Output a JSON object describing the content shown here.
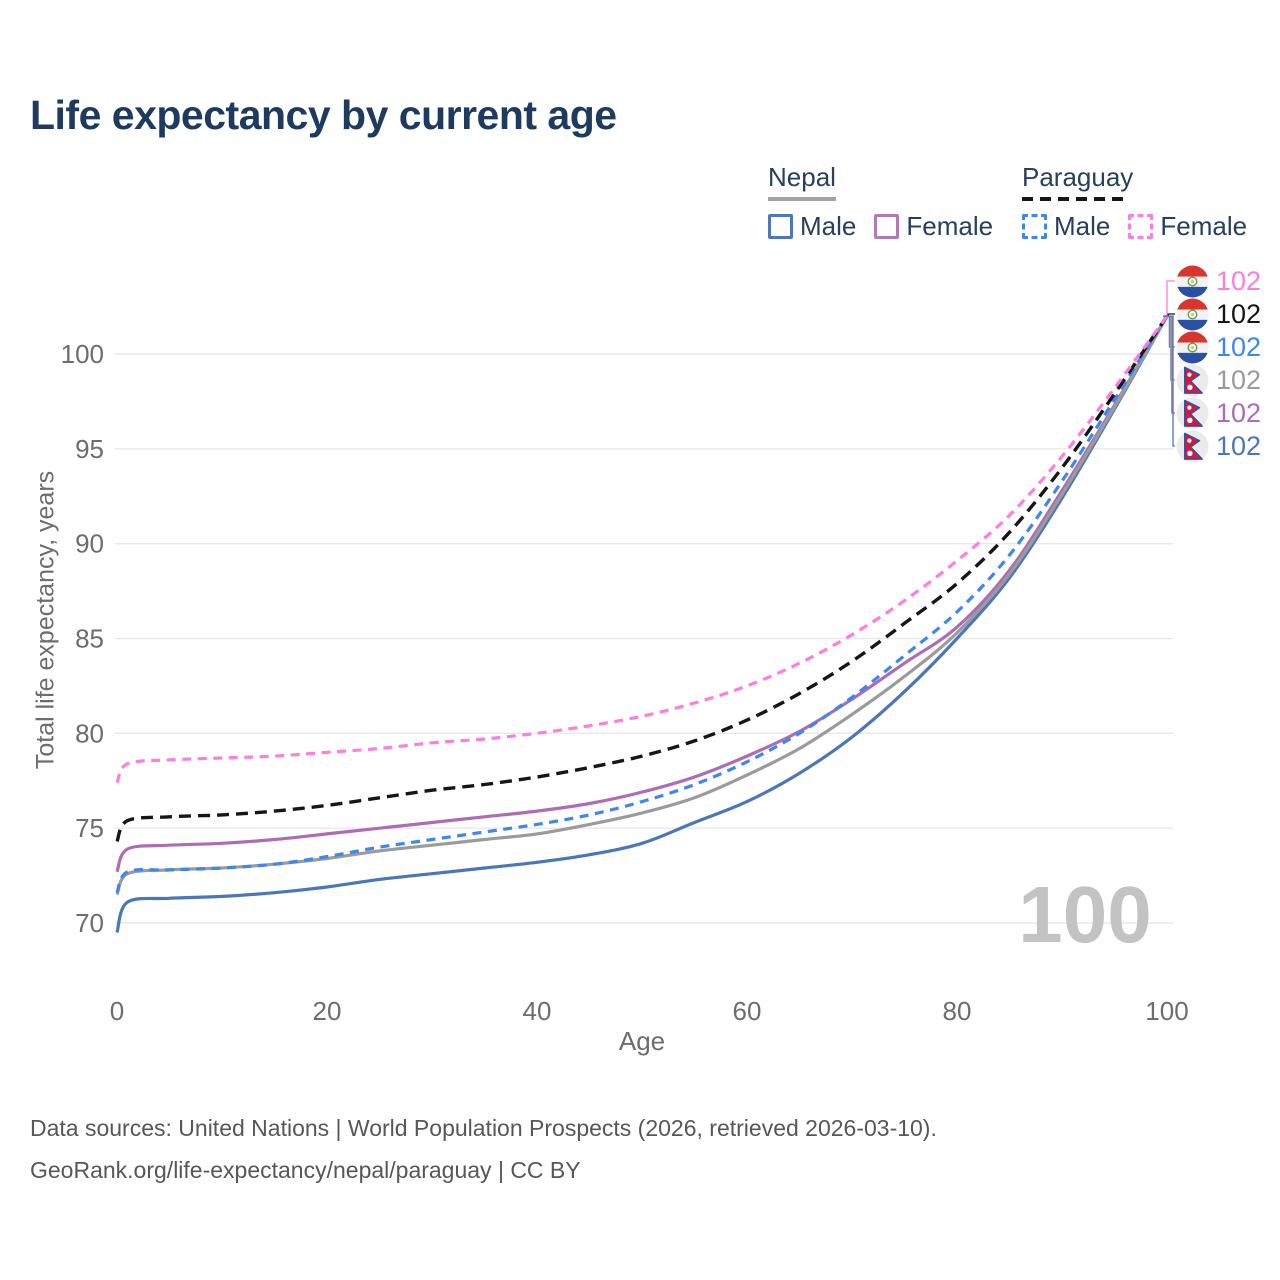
{
  "watermark": "100",
  "legend": {
    "groups": [
      {
        "country": "Nepal",
        "line_style": "solid",
        "underline_color": "#a3a3a3",
        "items": [
          {
            "label": "Male",
            "color": "#4a76ba"
          },
          {
            "label": "Female",
            "color": "#ad6cb5"
          }
        ]
      },
      {
        "country": "Paraguay",
        "line_style": "dashed",
        "underline_color": "#161616",
        "items": [
          {
            "label": "Male",
            "color": "#3d87f0"
          },
          {
            "label": "Female",
            "color": "#ff7de0"
          }
        ]
      }
    ]
  },
  "chart_data": {
    "type": "line",
    "title": "Life expectancy by current age",
    "xlabel": "Age",
    "ylabel": "Total life expectancy, years",
    "xlim": [
      0,
      100
    ],
    "ylim": [
      69,
      103
    ],
    "x_ticks": [
      0,
      20,
      40,
      60,
      80,
      100
    ],
    "y_ticks": [
      70,
      75,
      80,
      85,
      90,
      95,
      100
    ],
    "grid": "horizontal",
    "legend_position": "top-right",
    "x": [
      0,
      1,
      5,
      10,
      15,
      20,
      25,
      30,
      35,
      40,
      45,
      50,
      55,
      60,
      65,
      70,
      75,
      80,
      85,
      90,
      95,
      100
    ],
    "series": [
      {
        "name": "Paraguay Female",
        "country": "Paraguay",
        "sex": "female",
        "color": "#ff7de0",
        "line_style": "dashed",
        "flag": "paraguay",
        "end_label": "102",
        "values": [
          77.4,
          78.4,
          78.6,
          78.7,
          78.8,
          79.0,
          79.2,
          79.5,
          79.7,
          80.0,
          80.4,
          80.9,
          81.6,
          82.5,
          83.7,
          85.2,
          87.0,
          89.1,
          91.5,
          94.6,
          98.2,
          102
        ]
      },
      {
        "name": "Paraguay Both sexes",
        "country": "Paraguay",
        "sex": "both",
        "color": "#161616",
        "line_style": "dashed",
        "flag": "paraguay",
        "end_label": "102",
        "values": [
          74.3,
          75.4,
          75.6,
          75.7,
          75.9,
          76.2,
          76.6,
          77.0,
          77.3,
          77.7,
          78.2,
          78.8,
          79.6,
          80.7,
          82.1,
          83.8,
          85.8,
          87.9,
          90.6,
          94.0,
          97.9,
          102
        ]
      },
      {
        "name": "Paraguay Male",
        "country": "Paraguay",
        "sex": "male",
        "color": "#3d87f0",
        "line_style": "dashed",
        "flag": "paraguay",
        "end_label": "102",
        "values": [
          71.6,
          72.7,
          72.8,
          72.9,
          73.1,
          73.5,
          74.0,
          74.4,
          74.8,
          75.2,
          75.7,
          76.4,
          77.3,
          78.5,
          80.0,
          81.9,
          84.1,
          86.4,
          89.4,
          93.3,
          97.6,
          102
        ]
      },
      {
        "name": "Nepal Both sexes",
        "country": "Nepal",
        "sex": "both",
        "color": "#9b9b9b",
        "line_style": "solid",
        "flag": "nepal",
        "end_label": "102",
        "values": [
          71.5,
          72.6,
          72.8,
          72.9,
          73.1,
          73.4,
          73.8,
          74.1,
          74.4,
          74.7,
          75.2,
          75.8,
          76.6,
          77.8,
          79.2,
          81.0,
          83.0,
          85.3,
          88.4,
          92.6,
          97.2,
          102
        ]
      },
      {
        "name": "Nepal Female",
        "country": "Nepal",
        "sex": "female",
        "color": "#ad6cb5",
        "line_style": "solid",
        "flag": "nepal",
        "end_label": "102",
        "values": [
          72.7,
          73.9,
          74.1,
          74.2,
          74.4,
          74.7,
          75.0,
          75.3,
          75.6,
          75.9,
          76.3,
          76.9,
          77.7,
          78.8,
          80.1,
          81.8,
          83.7,
          85.6,
          88.6,
          92.8,
          97.3,
          102
        ]
      },
      {
        "name": "Nepal Male",
        "country": "Nepal",
        "sex": "male",
        "color": "#4a76ba",
        "line_style": "solid",
        "flag": "nepal",
        "end_label": "102",
        "values": [
          69.5,
          71.1,
          71.3,
          71.4,
          71.6,
          71.9,
          72.3,
          72.6,
          72.9,
          73.2,
          73.6,
          74.2,
          75.3,
          76.4,
          77.9,
          79.8,
          82.2,
          85.0,
          88.2,
          92.4,
          97.1,
          102
        ]
      }
    ]
  },
  "footer": {
    "line1": "Data sources: United Nations | World Population Prospects (2026, retrieved 2026-03-10).",
    "line2": "GeoRank.org/life-expectancy/nepal/paraguay | CC BY"
  }
}
